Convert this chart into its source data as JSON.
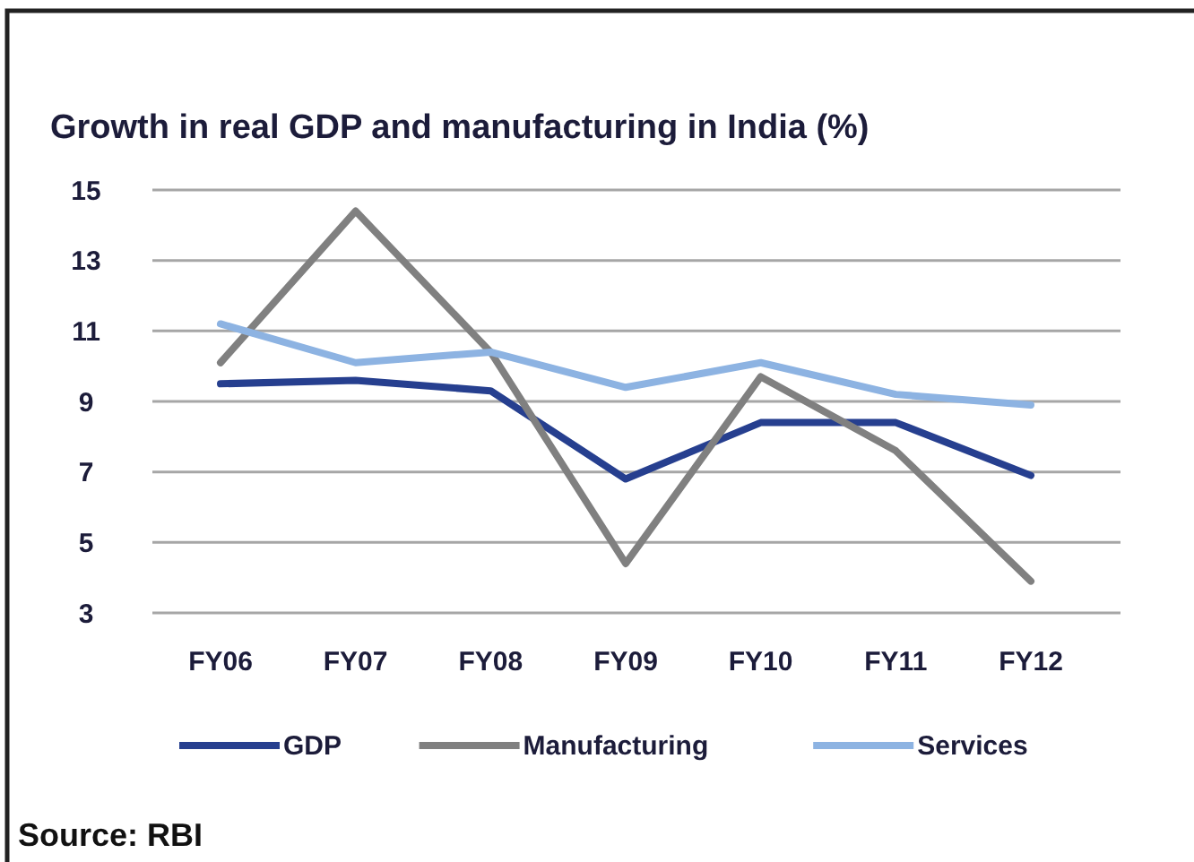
{
  "chart_data": {
    "type": "line",
    "title": "Growth in real GDP and manufacturing in India (%)",
    "categories": [
      "FY06",
      "FY07",
      "FY08",
      "FY09",
      "FY10",
      "FY11",
      "FY12"
    ],
    "series": [
      {
        "name": "GDP",
        "color": "#263f8f",
        "values": [
          9.5,
          9.6,
          9.3,
          6.8,
          8.4,
          8.4,
          6.9
        ]
      },
      {
        "name": "Manufacturing",
        "color": "#808080",
        "values": [
          10.1,
          14.4,
          10.4,
          4.4,
          9.7,
          7.6,
          3.9
        ]
      },
      {
        "name": "Services",
        "color": "#8db3e2",
        "values": [
          11.2,
          10.1,
          10.4,
          9.4,
          10.1,
          9.2,
          8.9
        ]
      }
    ],
    "ylim": [
      3,
      15
    ],
    "yticks": [
      3,
      5,
      7,
      9,
      11,
      13,
      15
    ],
    "grid": "y",
    "legend": "bottom",
    "marker": "none",
    "line_style": "solid",
    "annotations": [
      "Source: RBI"
    ]
  }
}
